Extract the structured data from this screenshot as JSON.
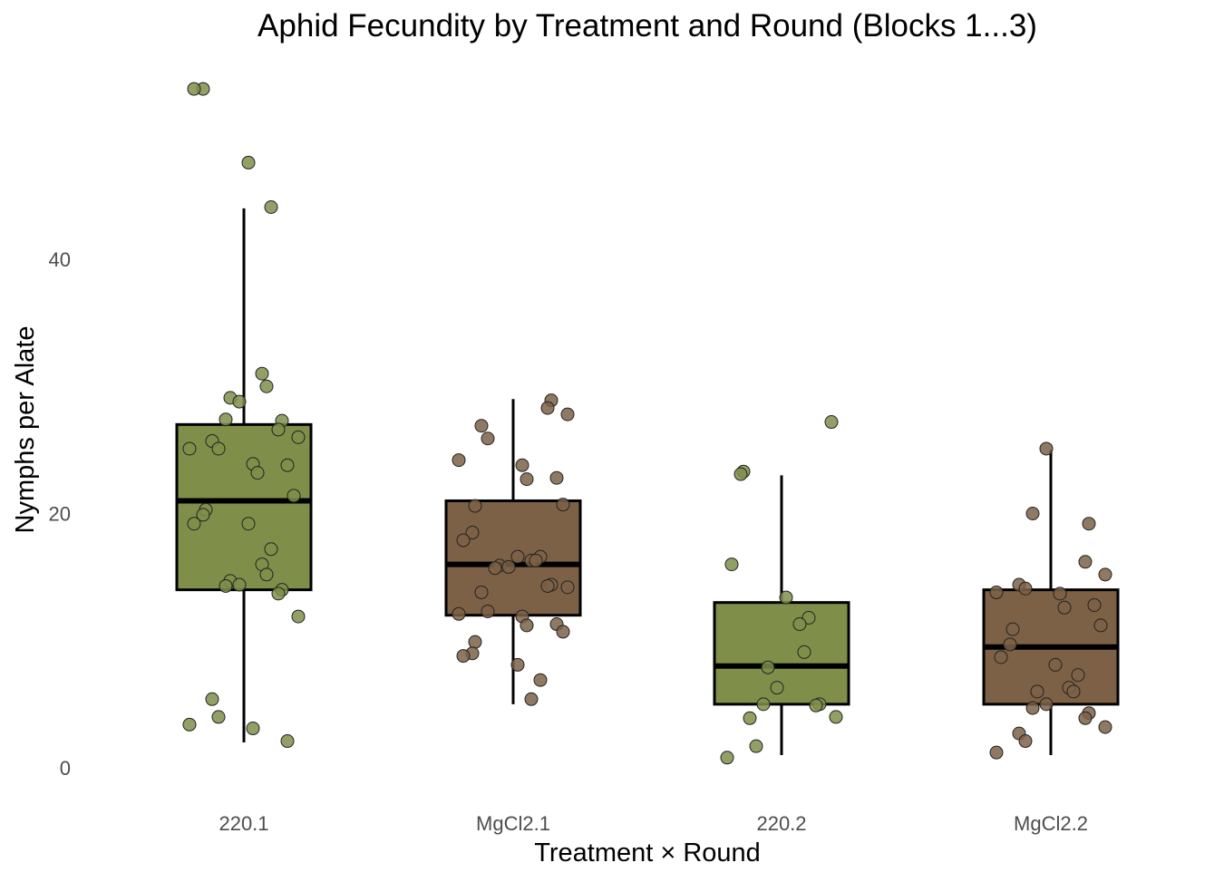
{
  "chart_data": {
    "type": "box",
    "title": "Aphid Fecundity by Treatment and Round (Blocks 1...3)",
    "xlabel": "Treatment × Round",
    "ylabel": "Nymphs per Alate",
    "ylim": [
      -1.5,
      55.5
    ],
    "yticks": [
      "0",
      "20",
      "40"
    ],
    "grid": false,
    "colors": {
      "220": "#7f8f4a",
      "MgCl2": "#7d6146"
    },
    "categories": [
      "220.1",
      "MgCl2.1",
      "220.2",
      "MgCl2.2"
    ],
    "series": [
      {
        "category": "220.1",
        "group": "220",
        "box": {
          "lower_whisker": 2,
          "q1": 14,
          "median": 21,
          "q3": 27,
          "upper_whisker": 44
        },
        "points": [
          53.4,
          53.4,
          47.6,
          44.1,
          31.0,
          30.0,
          29.1,
          28.8,
          27.4,
          27.3,
          26.6,
          26.0,
          25.7,
          25.1,
          25.1,
          23.9,
          23.8,
          23.2,
          21.4,
          20.3,
          19.9,
          19.2,
          19.2,
          17.2,
          16.0,
          15.2,
          14.7,
          14.4,
          14.3,
          14.0,
          13.7,
          11.9,
          5.4,
          4.0,
          3.4,
          3.1,
          2.1
        ]
      },
      {
        "category": "MgCl2.1",
        "group": "MgCl2",
        "box": {
          "lower_whisker": 5,
          "q1": 12,
          "median": 16,
          "q3": 21,
          "upper_whisker": 29
        },
        "points": [
          28.9,
          28.3,
          27.8,
          26.9,
          25.9,
          24.2,
          23.8,
          22.8,
          22.7,
          20.7,
          20.6,
          18.5,
          17.9,
          16.6,
          16.6,
          16.3,
          16.3,
          15.9,
          15.8,
          15.7,
          14.4,
          14.3,
          14.2,
          13.8,
          12.3,
          12.1,
          11.9,
          11.3,
          11.2,
          10.7,
          9.9,
          9.0,
          8.8,
          8.1,
          6.9,
          5.4
        ]
      },
      {
        "category": "220.2",
        "group": "220",
        "box": {
          "lower_whisker": 1,
          "q1": 5,
          "median": 8,
          "q3": 13,
          "upper_whisker": 23
        },
        "points": [
          27.2,
          23.3,
          23.1,
          16.0,
          13.4,
          11.8,
          11.3,
          9.1,
          7.9,
          6.3,
          5.0,
          5.0,
          4.9,
          4.0,
          3.9,
          1.7,
          0.8
        ]
      },
      {
        "category": "MgCl2.2",
        "group": "MgCl2",
        "box": {
          "lower_whisker": 1,
          "q1": 5,
          "median": 9.5,
          "q3": 14,
          "upper_whisker": 25
        },
        "points": [
          25.1,
          20.0,
          19.2,
          16.2,
          15.2,
          14.4,
          14.1,
          13.8,
          13.7,
          12.8,
          12.6,
          11.2,
          10.9,
          9.7,
          8.7,
          8.1,
          7.3,
          6.3,
          6.0,
          6.0,
          5.0,
          4.7,
          4.3,
          3.9,
          3.2,
          2.7,
          2.1,
          1.2
        ]
      }
    ]
  }
}
